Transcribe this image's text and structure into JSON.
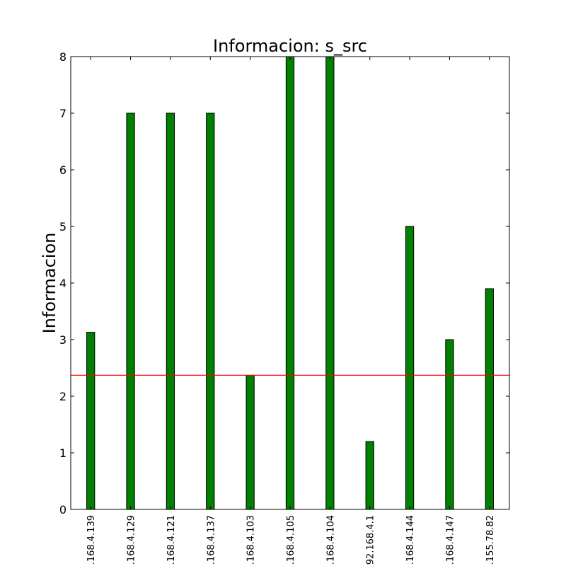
{
  "chart_data": {
    "type": "bar",
    "title": "Informacion: s_src",
    "xlabel": "",
    "ylabel": "Informacion",
    "categories": [
      ".168.4.139",
      ".168.4.129",
      ".168.4.121",
      ".168.4.137",
      ".168.4.103",
      ".168.4.105",
      ".168.4.104",
      "92.168.4.1",
      ".168.4.144",
      ".168.4.147",
      ".155.78.82"
    ],
    "values": [
      3.13,
      7.0,
      7.0,
      7.0,
      2.37,
      8.0,
      8.0,
      1.2,
      5.0,
      3.0,
      3.9
    ],
    "ylim": [
      0,
      8
    ],
    "yticks": [
      "0",
      "1",
      "2",
      "3",
      "4",
      "5",
      "6",
      "7",
      "8"
    ],
    "reference_line": 2.37,
    "grid": false,
    "colors": {
      "bar": "#008000",
      "bar_edge": "#000000",
      "reference_line": "#ff0000"
    }
  }
}
